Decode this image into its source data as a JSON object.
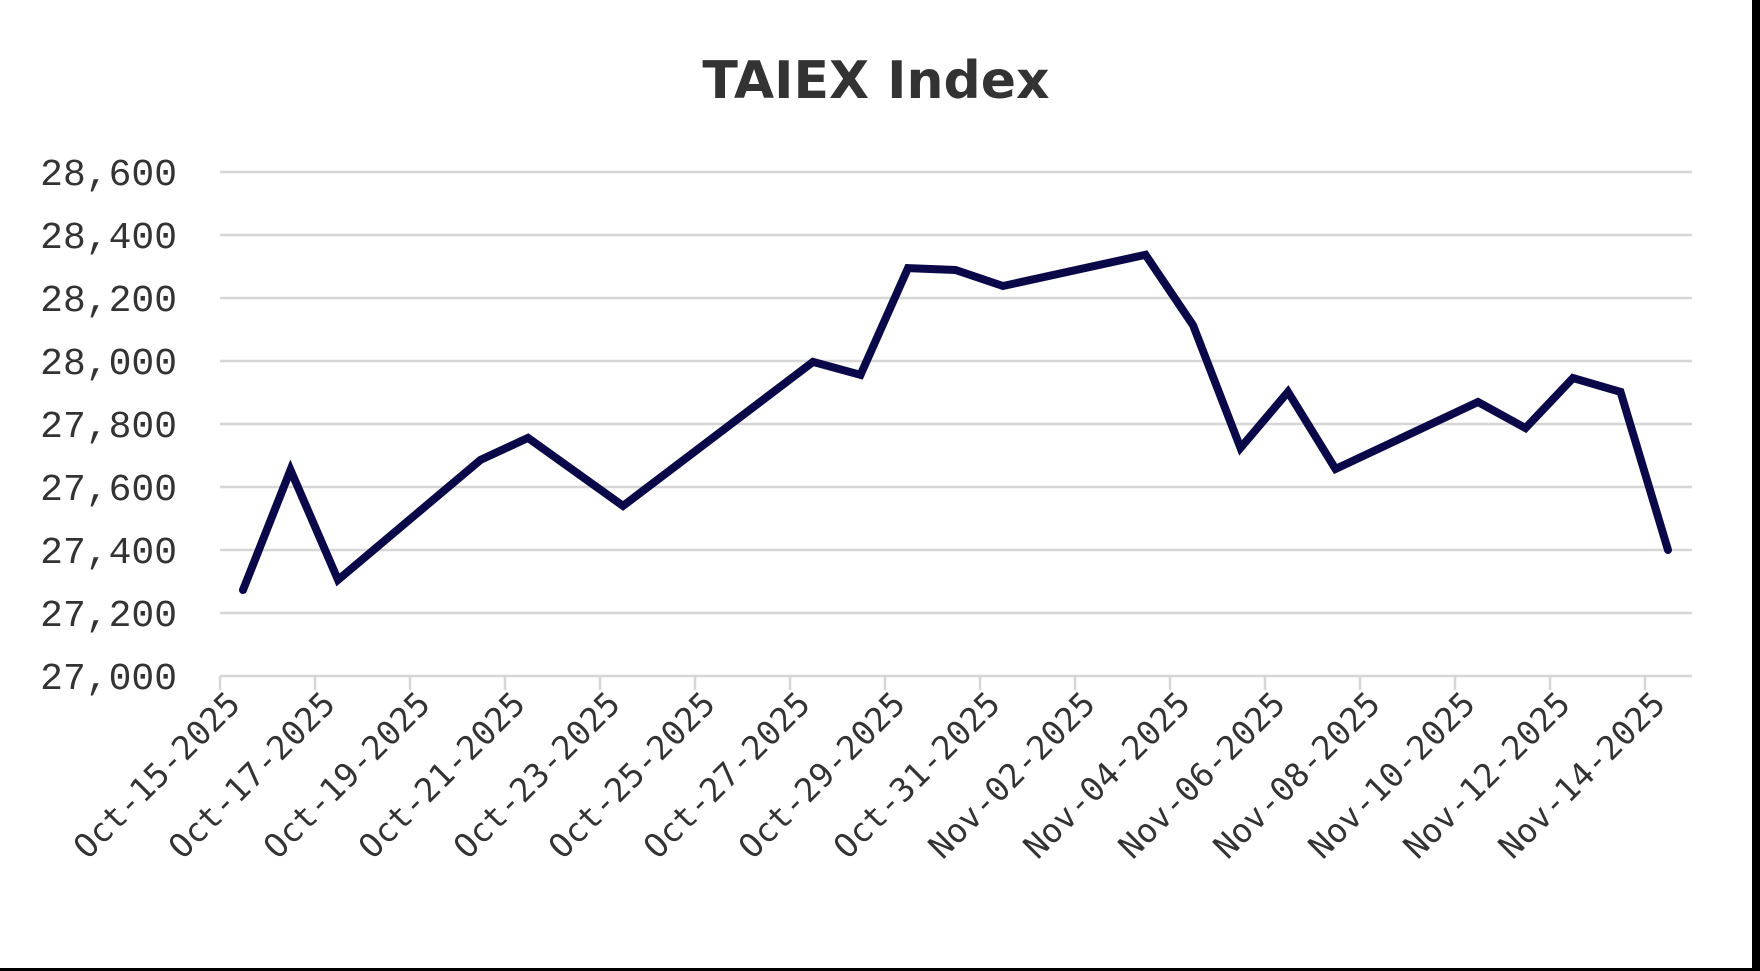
{
  "chart_data": {
    "type": "line",
    "title": "TAIEX Index",
    "xlabel": "",
    "ylabel": "",
    "ylim": [
      27000,
      28600
    ],
    "yticks": [
      27000,
      27200,
      27400,
      27600,
      27800,
      28000,
      28200,
      28400,
      28600
    ],
    "ytick_labels": [
      "27,000",
      "27,200",
      "27,400",
      "27,600",
      "27,800",
      "28,000",
      "28,200",
      "28,400",
      "28,600"
    ],
    "xlim": [
      "Oct-15-2025",
      "Nov-14-2025"
    ],
    "xtick_labels": [
      "Oct-15-2025",
      "Oct-17-2025",
      "Oct-19-2025",
      "Oct-21-2025",
      "Oct-23-2025",
      "Oct-25-2025",
      "Oct-27-2025",
      "Oct-29-2025",
      "Oct-31-2025",
      "Nov-02-2025",
      "Nov-04-2025",
      "Nov-06-2025",
      "Nov-08-2025",
      "Nov-10-2025",
      "Nov-12-2025",
      "Nov-14-2025"
    ],
    "grid": true,
    "legend": null,
    "series": [
      {
        "name": "TAIEX Index",
        "color": "#0a0848",
        "x": [
          "Oct-15-2025",
          "Oct-16-2025",
          "Oct-17-2025",
          "Oct-20-2025",
          "Oct-21-2025",
          "Oct-23-2025",
          "Oct-27-2025",
          "Oct-28-2025",
          "Oct-29-2025",
          "Oct-30-2025",
          "Oct-31-2025",
          "Nov-03-2025",
          "Nov-04-2025",
          "Nov-05-2025",
          "Nov-06-2025",
          "Nov-07-2025",
          "Nov-10-2025",
          "Nov-11-2025",
          "Nov-12-2025",
          "Nov-13-2025",
          "Nov-14-2025"
        ],
        "day_index": [
          0,
          1,
          2,
          5,
          6,
          8,
          12,
          13,
          14,
          15,
          16,
          19,
          20,
          21,
          22,
          23,
          26,
          27,
          28,
          29,
          30
        ],
        "values": [
          27273,
          27654,
          27305,
          27686,
          27756,
          27540,
          27997,
          27956,
          28295,
          28289,
          28238,
          28337,
          28114,
          27724,
          27902,
          27657,
          27870,
          27787,
          27946,
          27902,
          27400
        ]
      }
    ]
  },
  "colors": {
    "line": "#0a0848",
    "grid": "#d6d6d6",
    "text": "#333333",
    "background": "#ffffff"
  }
}
